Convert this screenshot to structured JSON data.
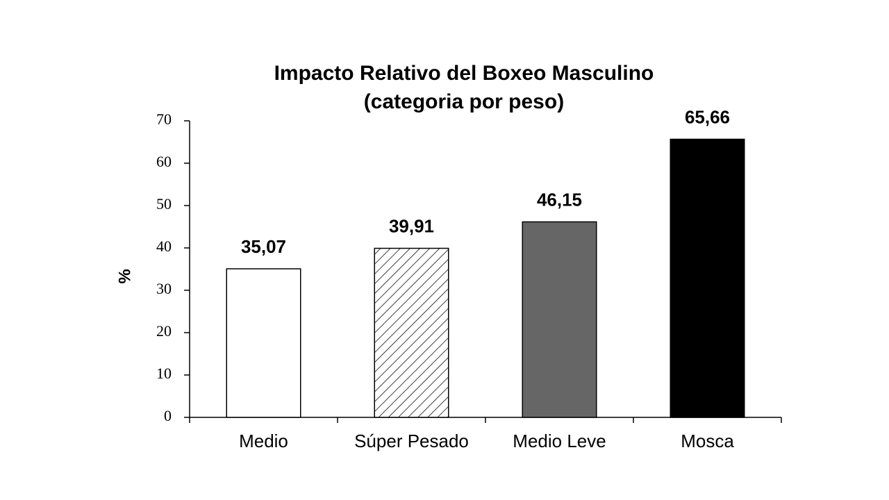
{
  "chart_data": {
    "type": "bar",
    "title": "Impacto Relativo del Boxeo Masculino",
    "subtitle": "(categoria por peso)",
    "y_label": "%",
    "categories": [
      "Medio",
      "Súper Pesado",
      "Medio Leve",
      "Mosca"
    ],
    "values": [
      35.07,
      39.91,
      46.15,
      65.66
    ],
    "value_labels": [
      "35,07",
      "39,91",
      "46,15",
      "65,66"
    ],
    "fills": [
      {
        "color": "#ffffff"
      },
      {
        "color": "#ffffff",
        "hatch": "diagonal"
      },
      {
        "color": "#666666"
      },
      {
        "color": "#000000"
      }
    ],
    "ylim": [
      0,
      70
    ],
    "yticks": [
      0,
      10,
      20,
      30,
      40,
      50,
      60,
      70
    ],
    "grid": false
  }
}
